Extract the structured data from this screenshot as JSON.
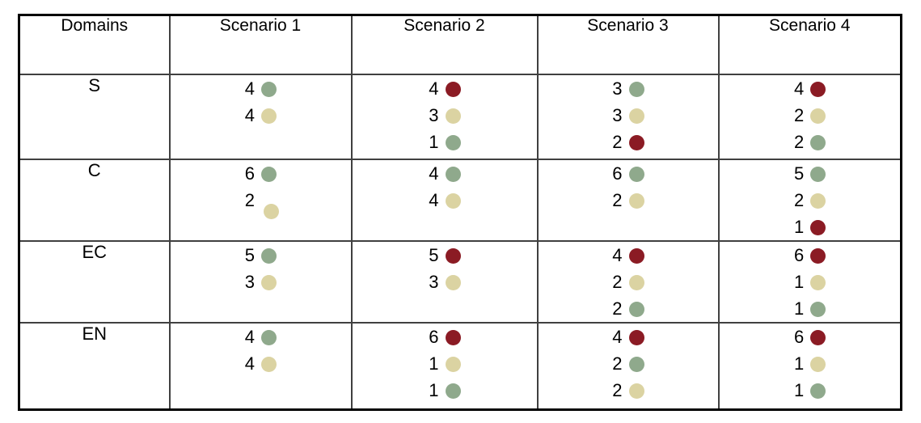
{
  "chart_data": {
    "type": "table",
    "title": "",
    "columns": [
      "Domains",
      "Scenario 1",
      "Scenario 2",
      "Scenario 3",
      "Scenario 4"
    ],
    "dot_colors": {
      "green": "#8FA98C",
      "tan": "#DBD3A2",
      "red": "#8B1B24"
    },
    "rows": [
      {
        "domain": "S",
        "cells": [
          [
            {
              "value": 4,
              "dot": "green"
            },
            {
              "value": 4,
              "dot": "tan"
            }
          ],
          [
            {
              "value": 4,
              "dot": "red"
            },
            {
              "value": 3,
              "dot": "tan"
            },
            {
              "value": 1,
              "dot": "green"
            }
          ],
          [
            {
              "value": 3,
              "dot": "green"
            },
            {
              "value": 3,
              "dot": "tan"
            },
            {
              "value": 2,
              "dot": "red"
            }
          ],
          [
            {
              "value": 4,
              "dot": "red"
            },
            {
              "value": 2,
              "dot": "tan"
            },
            {
              "value": 2,
              "dot": "green"
            }
          ]
        ]
      },
      {
        "domain": "C",
        "cells": [
          [
            {
              "value": 6,
              "dot": "green"
            },
            {
              "value": 2,
              "dot": "tan",
              "dot_offset": true
            }
          ],
          [
            {
              "value": 4,
              "dot": "green"
            },
            {
              "value": 4,
              "dot": "tan"
            }
          ],
          [
            {
              "value": 6,
              "dot": "green"
            },
            {
              "value": 2,
              "dot": "tan"
            }
          ],
          [
            {
              "value": 5,
              "dot": "green"
            },
            {
              "value": 2,
              "dot": "tan"
            },
            {
              "value": 1,
              "dot": "red"
            }
          ]
        ]
      },
      {
        "domain": "EC",
        "cells": [
          [
            {
              "value": 5,
              "dot": "green"
            },
            {
              "value": 3,
              "dot": "tan"
            }
          ],
          [
            {
              "value": 5,
              "dot": "red"
            },
            {
              "value": 3,
              "dot": "tan"
            }
          ],
          [
            {
              "value": 4,
              "dot": "red"
            },
            {
              "value": 2,
              "dot": "tan"
            },
            {
              "value": 2,
              "dot": "green"
            }
          ],
          [
            {
              "value": 6,
              "dot": "red"
            },
            {
              "value": 1,
              "dot": "tan"
            },
            {
              "value": 1,
              "dot": "green"
            }
          ]
        ]
      },
      {
        "domain": "EN",
        "cells": [
          [
            {
              "value": 4,
              "dot": "green"
            },
            {
              "value": 4,
              "dot": "tan"
            }
          ],
          [
            {
              "value": 6,
              "dot": "red"
            },
            {
              "value": 1,
              "dot": "tan"
            },
            {
              "value": 1,
              "dot": "green"
            }
          ],
          [
            {
              "value": 4,
              "dot": "red"
            },
            {
              "value": 2,
              "dot": "green"
            },
            {
              "value": 2,
              "dot": "tan"
            }
          ],
          [
            {
              "value": 6,
              "dot": "red"
            },
            {
              "value": 1,
              "dot": "tan"
            },
            {
              "value": 1,
              "dot": "green"
            }
          ]
        ]
      }
    ]
  }
}
